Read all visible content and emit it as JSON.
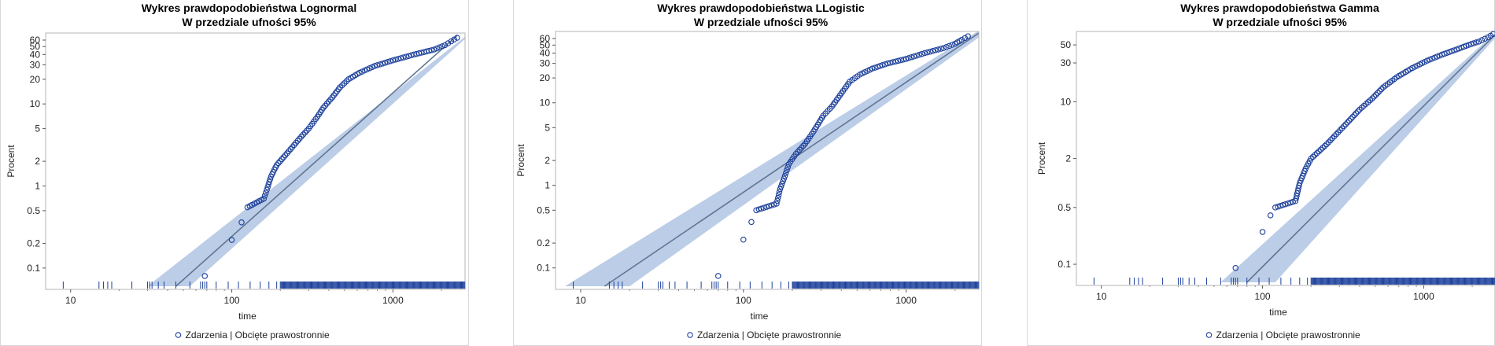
{
  "colors": {
    "band": "#bccde7",
    "line": "#5f7591",
    "marker": "#1b3f9a",
    "rug": "#1b3f9a",
    "frame": "#b5b5b5"
  },
  "chart_data": [
    {
      "type": "scatter",
      "title": "Wykres prawdopodobieństwa Lognormal",
      "subtitle": "W przedziale ufności 95%",
      "xlabel": "time",
      "ylabel": "Procent",
      "x_scale": "log",
      "xlim": [
        7,
        2800
      ],
      "x_ticks": [
        10,
        100,
        1000
      ],
      "x_tick_labels": [
        "10",
        "100",
        "1000"
      ],
      "y_scale": "lognormal probability",
      "ylim": [
        0.06,
        70
      ],
      "y_ticks": [
        0.1,
        0.2,
        0.5,
        1,
        2,
        5,
        10,
        20,
        30,
        40,
        50,
        60
      ],
      "y_tick_labels": [
        "0.1",
        "0.2",
        "0.5",
        "1",
        "2",
        "5",
        "10",
        "20",
        "30",
        "40",
        "50",
        "60"
      ],
      "fit_line": [
        [
          45,
          0.06
        ],
        [
          2500,
          68
        ]
      ],
      "band_upper": [
        [
          30,
          0.06
        ],
        [
          2800,
          66
        ]
      ],
      "band_lower": [
        [
          55,
          0.06
        ],
        [
          2800,
          62
        ]
      ],
      "points": [
        [
          68,
          0.08
        ],
        [
          100,
          0.22
        ],
        [
          115,
          0.36
        ],
        [
          125,
          0.55
        ],
        [
          158,
          0.7
        ],
        [
          165,
          0.9
        ],
        [
          175,
          1.3
        ],
        [
          190,
          1.8
        ],
        [
          220,
          2.5
        ],
        [
          270,
          4
        ],
        [
          300,
          5
        ],
        [
          340,
          7
        ],
        [
          370,
          9
        ],
        [
          420,
          12
        ],
        [
          470,
          16
        ],
        [
          530,
          20
        ],
        [
          620,
          24
        ],
        [
          770,
          29
        ],
        [
          1000,
          34
        ],
        [
          1350,
          40
        ],
        [
          1800,
          46
        ],
        [
          2100,
          52
        ],
        [
          2300,
          58
        ],
        [
          2500,
          64
        ]
      ],
      "legend": [
        "Zdarzenia",
        "Obcięte prawostronnie"
      ],
      "legend_position": "bottom",
      "grid": false
    },
    {
      "type": "scatter",
      "title": "Wykres prawdopodobieństwa LLogistic",
      "subtitle": "W przedziale ufności 95%",
      "xlabel": "time",
      "ylabel": "Procent",
      "x_scale": "log",
      "xlim": [
        7,
        2800
      ],
      "x_ticks": [
        10,
        100,
        1000
      ],
      "x_tick_labels": [
        "10",
        "100",
        "1000"
      ],
      "y_scale": "log-logistic probability",
      "ylim": [
        0.06,
        70
      ],
      "y_ticks": [
        0.1,
        0.2,
        0.5,
        1,
        2,
        5,
        10,
        20,
        30,
        40,
        50,
        60
      ],
      "y_tick_labels": [
        "0.1",
        "0.2",
        "0.5",
        "1",
        "2",
        "5",
        "10",
        "20",
        "30",
        "40",
        "50",
        "60"
      ],
      "fit_line": [
        [
          14,
          0.06
        ],
        [
          2800,
          70
        ]
      ],
      "band_upper": [
        [
          8,
          0.06
        ],
        [
          2800,
          75
        ]
      ],
      "band_lower": [
        [
          20,
          0.06
        ],
        [
          2800,
          62
        ]
      ],
      "points": [
        [
          70,
          0.08
        ],
        [
          100,
          0.22
        ],
        [
          112,
          0.36
        ],
        [
          120,
          0.5
        ],
        [
          160,
          0.6
        ],
        [
          168,
          0.9
        ],
        [
          180,
          1.3
        ],
        [
          190,
          1.8
        ],
        [
          210,
          2.4
        ],
        [
          240,
          3.2
        ],
        [
          270,
          4.5
        ],
        [
          310,
          7
        ],
        [
          350,
          9
        ],
        [
          400,
          13
        ],
        [
          450,
          18
        ],
        [
          520,
          22
        ],
        [
          620,
          26
        ],
        [
          770,
          30
        ],
        [
          1000,
          34
        ],
        [
          1300,
          40
        ],
        [
          1700,
          46
        ],
        [
          2000,
          52
        ],
        [
          2200,
          58
        ],
        [
          2400,
          64
        ]
      ],
      "legend": [
        "Zdarzenia",
        "Obcięte prawostronnie"
      ],
      "legend_position": "bottom",
      "grid": false
    },
    {
      "type": "scatter",
      "title": "Wykres prawdopodobieństwa Gamma",
      "subtitle": "W przedziale ufności 95%",
      "xlabel": "time",
      "ylabel": "Procent",
      "x_scale": "log",
      "xlim": [
        7,
        2800
      ],
      "x_ticks": [
        10,
        100,
        1000
      ],
      "x_tick_labels": [
        "10",
        "100",
        "1000"
      ],
      "y_scale": "gamma probability",
      "ylim": [
        0.06,
        70
      ],
      "y_ticks": [
        0.1,
        0.5,
        2,
        10,
        30,
        50
      ],
      "y_tick_labels": [
        "0.1",
        "0.5",
        "2",
        "10",
        "30",
        "50"
      ],
      "fit_line": [
        [
          80,
          0.06
        ],
        [
          2800,
          68
        ]
      ],
      "band_upper": [
        [
          55,
          0.06
        ],
        [
          2800,
          72
        ]
      ],
      "band_lower": [
        [
          120,
          0.06
        ],
        [
          2800,
          62
        ]
      ],
      "points": [
        [
          68,
          0.09
        ],
        [
          100,
          0.25
        ],
        [
          112,
          0.4
        ],
        [
          120,
          0.5
        ],
        [
          160,
          0.6
        ],
        [
          170,
          1
        ],
        [
          185,
          1.5
        ],
        [
          200,
          2
        ],
        [
          250,
          3
        ],
        [
          320,
          5
        ],
        [
          400,
          8
        ],
        [
          480,
          11
        ],
        [
          560,
          15
        ],
        [
          680,
          20
        ],
        [
          850,
          26
        ],
        [
          1050,
          32
        ],
        [
          1300,
          38
        ],
        [
          1600,
          44
        ],
        [
          1900,
          50
        ],
        [
          2200,
          55
        ],
        [
          2500,
          62
        ],
        [
          2700,
          68
        ]
      ],
      "legend": [
        "Zdarzenia",
        "Obcięte prawostronnie"
      ],
      "legend_position": "bottom",
      "grid": false
    }
  ]
}
